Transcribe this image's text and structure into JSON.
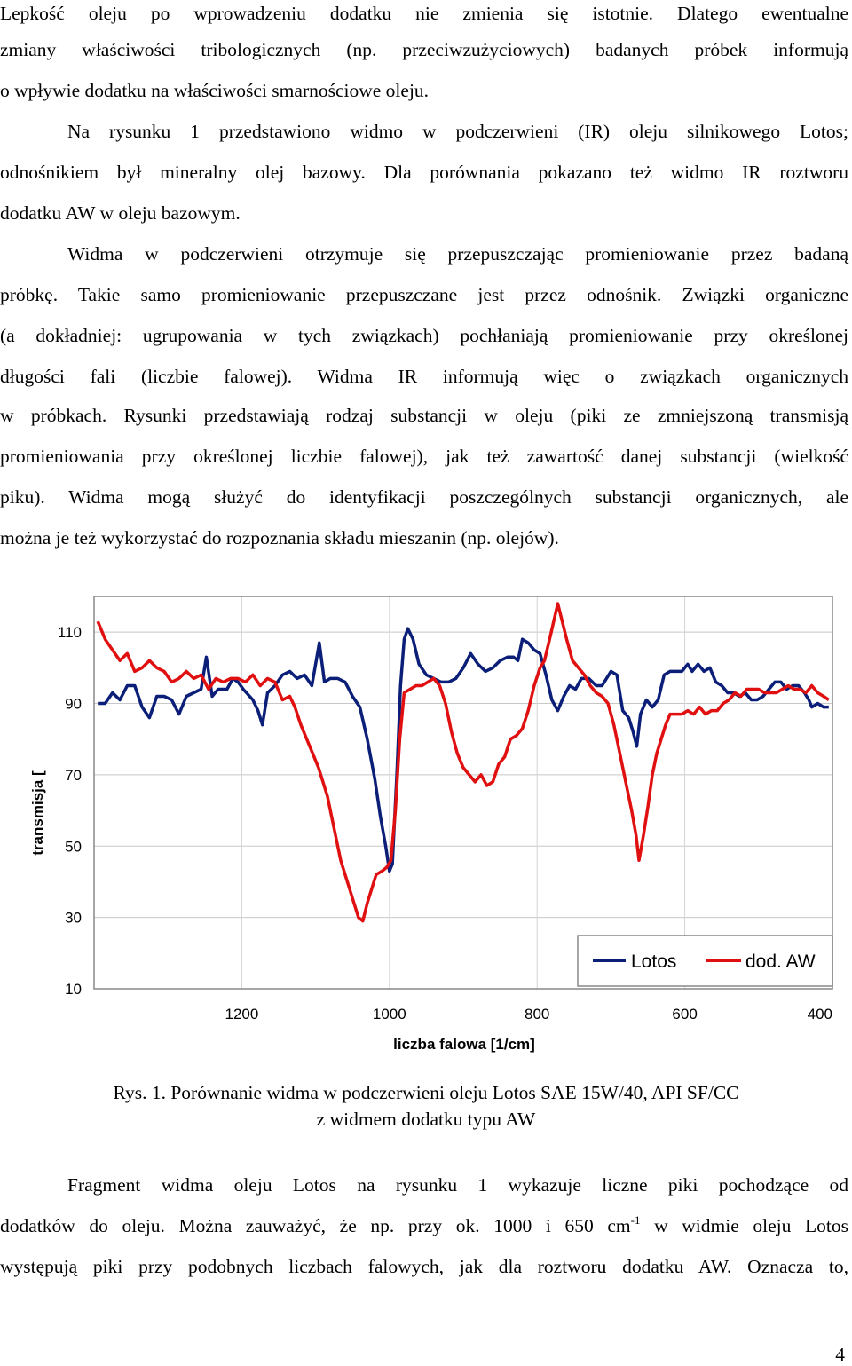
{
  "paragraphs": {
    "p1": [
      "Lepkość oleju po wprowadzeniu dodatku nie zmienia się istotnie. Dlatego ewentualne",
      "zmiany właściwości tribologicznych (np. przeciwzużyciowych) badanych próbek informują",
      "o wpływie dodatku na właściwości smarnościowe oleju."
    ],
    "p2": [
      "Na rysunku 1 przedstawiono widmo w podczerwieni (IR) oleju silnikowego Lotos;",
      "odnośnikiem był mineralny olej bazowy. Dla porównania pokazano też widmo IR roztworu",
      "dodatku AW w oleju bazowym."
    ],
    "p3": [
      "Widma w podczerwieni otrzymuje się przepuszczając promieniowanie przez badaną",
      "próbkę. Takie samo promieniowanie przepuszczane jest przez odnośnik. Związki organiczne",
      "(a dokładniej: ugrupowania w tych związkach) pochłaniają promieniowanie przy określonej",
      "długości fali (liczbie falowej). Widma IR informują więc o związkach organicznych",
      "w próbkach. Rysunki przedstawiają rodzaj substancji w oleju (piki ze zmniejszoną transmisją",
      "promieniowania przy określonej liczbie falowej), jak też zawartość danej substancji (wielkość",
      "piku). Widma mogą służyć do identyfikacji poszczególnych substancji organicznych, ale",
      "można je też wykorzystać do rozpoznania składu mieszanin (np. olejów)."
    ],
    "p4": {
      "line1": "Fragment widma oleju Lotos na rysunku 1 wykazuje liczne piki pochodzące od",
      "line2_before": "dodatków do oleju. Można zauważyć, że np. przy ok. 1000 i 650 cm",
      "line2_sup": "-1",
      "line2_after": " w widmie oleju Lotos",
      "line3": "występują piki przy podobnych liczbach falowych, jak dla roztworu dodatku AW. Oznacza to,"
    }
  },
  "figure": {
    "caption_line1": "Rys. 1. Porównanie widma w podczerwieni oleju Lotos SAE 15W/40, API SF/CC",
    "caption_line2": "z widmem dodatku typu AW"
  },
  "page_number": "4",
  "chart_data": {
    "type": "line",
    "xlabel": "liczba falowa [1/cm]",
    "ylabel": "transmisja [",
    "x_reversed": true,
    "xlim": [
      1400,
      400
    ],
    "ylim": [
      10,
      120
    ],
    "x_ticks": [
      "1200",
      "1000",
      "800",
      "600",
      "400"
    ],
    "x_tick_values": [
      1200,
      1000,
      800,
      600,
      400
    ],
    "y_ticks": [
      "10",
      "30",
      "50",
      "70",
      "90",
      "110"
    ],
    "y_tick_values": [
      10,
      30,
      50,
      70,
      90,
      110
    ],
    "grid_y": true,
    "grid_x": true,
    "legend_position": "bottom-right",
    "series": [
      {
        "name": "Lotos",
        "color": "#0b1f78",
        "points": [
          [
            1395,
            90
          ],
          [
            1385,
            90
          ],
          [
            1375,
            93
          ],
          [
            1365,
            91
          ],
          [
            1355,
            95
          ],
          [
            1345,
            95
          ],
          [
            1335,
            89
          ],
          [
            1325,
            86
          ],
          [
            1315,
            92
          ],
          [
            1305,
            92
          ],
          [
            1295,
            91
          ],
          [
            1285,
            87
          ],
          [
            1275,
            92
          ],
          [
            1265,
            93
          ],
          [
            1255,
            94
          ],
          [
            1248,
            103
          ],
          [
            1240,
            92
          ],
          [
            1232,
            94
          ],
          [
            1220,
            94
          ],
          [
            1212,
            97
          ],
          [
            1205,
            96
          ],
          [
            1198,
            94
          ],
          [
            1185,
            91
          ],
          [
            1178,
            88
          ],
          [
            1172,
            84
          ],
          [
            1165,
            93
          ],
          [
            1155,
            95
          ],
          [
            1145,
            98
          ],
          [
            1135,
            99
          ],
          [
            1125,
            97
          ],
          [
            1115,
            98
          ],
          [
            1105,
            95
          ],
          [
            1095,
            107
          ],
          [
            1088,
            96
          ],
          [
            1080,
            97
          ],
          [
            1070,
            97
          ],
          [
            1060,
            96
          ],
          [
            1050,
            92
          ],
          [
            1040,
            89
          ],
          [
            1030,
            80
          ],
          [
            1020,
            69
          ],
          [
            1012,
            58
          ],
          [
            1005,
            50
          ],
          [
            1000,
            43
          ],
          [
            996,
            45
          ],
          [
            990,
            70
          ],
          [
            985,
            95
          ],
          [
            980,
            108
          ],
          [
            975,
            111
          ],
          [
            968,
            108
          ],
          [
            960,
            101
          ],
          [
            950,
            98
          ],
          [
            940,
            97
          ],
          [
            930,
            96
          ],
          [
            920,
            96
          ],
          [
            910,
            97
          ],
          [
            900,
            100
          ],
          [
            890,
            104
          ],
          [
            880,
            101
          ],
          [
            870,
            99
          ],
          [
            860,
            100
          ],
          [
            850,
            102
          ],
          [
            840,
            103
          ],
          [
            832,
            103
          ],
          [
            826,
            102
          ],
          [
            820,
            108
          ],
          [
            812,
            107
          ],
          [
            804,
            105
          ],
          [
            796,
            104
          ],
          [
            788,
            98
          ],
          [
            780,
            91
          ],
          [
            772,
            88
          ],
          [
            764,
            92
          ],
          [
            756,
            95
          ],
          [
            748,
            94
          ],
          [
            740,
            97
          ],
          [
            730,
            97
          ],
          [
            720,
            95
          ],
          [
            712,
            95
          ],
          [
            700,
            99
          ],
          [
            692,
            98
          ],
          [
            684,
            88
          ],
          [
            676,
            86
          ],
          [
            670,
            82
          ],
          [
            665,
            78
          ],
          [
            660,
            87
          ],
          [
            652,
            91
          ],
          [
            644,
            89
          ],
          [
            636,
            91
          ],
          [
            628,
            98
          ],
          [
            620,
            99
          ],
          [
            612,
            99
          ],
          [
            604,
            99
          ],
          [
            596,
            101
          ],
          [
            590,
            99
          ],
          [
            582,
            101
          ],
          [
            574,
            99
          ],
          [
            566,
            100
          ],
          [
            558,
            96
          ],
          [
            550,
            95
          ],
          [
            542,
            93
          ],
          [
            534,
            93
          ],
          [
            526,
            92
          ],
          [
            518,
            93
          ],
          [
            510,
            91
          ],
          [
            502,
            91
          ],
          [
            494,
            92
          ],
          [
            486,
            94
          ],
          [
            478,
            96
          ],
          [
            470,
            96
          ],
          [
            462,
            94
          ],
          [
            454,
            95
          ],
          [
            446,
            95
          ],
          [
            438,
            93
          ],
          [
            432,
            91
          ],
          [
            428,
            89
          ],
          [
            420,
            90
          ],
          [
            412,
            89
          ],
          [
            405,
            89
          ]
        ]
      },
      {
        "name": "dod. AW",
        "color": "#e01010",
        "points": [
          [
            1395,
            113
          ],
          [
            1385,
            108
          ],
          [
            1375,
            105
          ],
          [
            1365,
            102
          ],
          [
            1355,
            104
          ],
          [
            1345,
            99
          ],
          [
            1335,
            100
          ],
          [
            1325,
            102
          ],
          [
            1315,
            100
          ],
          [
            1305,
            99
          ],
          [
            1295,
            96
          ],
          [
            1285,
            97
          ],
          [
            1275,
            99
          ],
          [
            1265,
            97
          ],
          [
            1255,
            98
          ],
          [
            1245,
            94
          ],
          [
            1235,
            97
          ],
          [
            1225,
            96
          ],
          [
            1215,
            97
          ],
          [
            1205,
            97
          ],
          [
            1195,
            96
          ],
          [
            1185,
            98
          ],
          [
            1175,
            95
          ],
          [
            1165,
            97
          ],
          [
            1155,
            96
          ],
          [
            1145,
            91
          ],
          [
            1135,
            92
          ],
          [
            1128,
            89
          ],
          [
            1120,
            84
          ],
          [
            1112,
            80
          ],
          [
            1104,
            76
          ],
          [
            1096,
            72
          ],
          [
            1090,
            68
          ],
          [
            1084,
            64
          ],
          [
            1078,
            58
          ],
          [
            1072,
            52
          ],
          [
            1066,
            46
          ],
          [
            1060,
            42
          ],
          [
            1054,
            38
          ],
          [
            1048,
            34
          ],
          [
            1042,
            30
          ],
          [
            1036,
            29
          ],
          [
            1030,
            34
          ],
          [
            1024,
            38
          ],
          [
            1018,
            42
          ],
          [
            1010,
            43
          ],
          [
            1004,
            44
          ],
          [
            998,
            46
          ],
          [
            992,
            60
          ],
          [
            986,
            80
          ],
          [
            980,
            93
          ],
          [
            972,
            94
          ],
          [
            964,
            95
          ],
          [
            956,
            95
          ],
          [
            948,
            96
          ],
          [
            940,
            97
          ],
          [
            932,
            95
          ],
          [
            924,
            90
          ],
          [
            916,
            82
          ],
          [
            908,
            76
          ],
          [
            900,
            72
          ],
          [
            892,
            70
          ],
          [
            884,
            68
          ],
          [
            876,
            70
          ],
          [
            868,
            67
          ],
          [
            860,
            68
          ],
          [
            852,
            73
          ],
          [
            844,
            75
          ],
          [
            836,
            80
          ],
          [
            828,
            81
          ],
          [
            820,
            83
          ],
          [
            812,
            88
          ],
          [
            804,
            95
          ],
          [
            796,
            100
          ],
          [
            790,
            102
          ],
          [
            782,
            109
          ],
          [
            772,
            118
          ],
          [
            766,
            113
          ],
          [
            760,
            108
          ],
          [
            752,
            102
          ],
          [
            744,
            100
          ],
          [
            736,
            98
          ],
          [
            728,
            95
          ],
          [
            720,
            93
          ],
          [
            712,
            92
          ],
          [
            704,
            90
          ],
          [
            696,
            84
          ],
          [
            688,
            76
          ],
          [
            680,
            68
          ],
          [
            672,
            60
          ],
          [
            666,
            53
          ],
          [
            662,
            46
          ],
          [
            656,
            53
          ],
          [
            650,
            61
          ],
          [
            644,
            70
          ],
          [
            638,
            76
          ],
          [
            632,
            80
          ],
          [
            626,
            84
          ],
          [
            620,
            87
          ],
          [
            612,
            87
          ],
          [
            604,
            87
          ],
          [
            596,
            88
          ],
          [
            588,
            87
          ],
          [
            580,
            89
          ],
          [
            572,
            87
          ],
          [
            564,
            88
          ],
          [
            556,
            88
          ],
          [
            548,
            90
          ],
          [
            540,
            91
          ],
          [
            532,
            93
          ],
          [
            524,
            92
          ],
          [
            516,
            94
          ],
          [
            508,
            94
          ],
          [
            500,
            94
          ],
          [
            492,
            93
          ],
          [
            484,
            93
          ],
          [
            476,
            93
          ],
          [
            468,
            94
          ],
          [
            460,
            95
          ],
          [
            452,
            94
          ],
          [
            444,
            94
          ],
          [
            436,
            93
          ],
          [
            428,
            95
          ],
          [
            420,
            93
          ],
          [
            412,
            92
          ],
          [
            405,
            91
          ]
        ]
      }
    ]
  }
}
